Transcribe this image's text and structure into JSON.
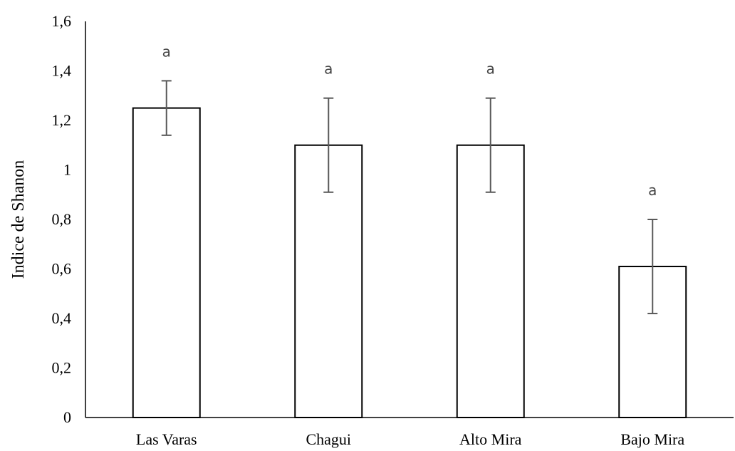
{
  "chart_data": {
    "type": "bar",
    "title": "",
    "xlabel": "",
    "ylabel": "Indice de Shanon",
    "categories": [
      "Las Varas",
      "Chagui",
      "Alto Mira",
      "Bajo Mira"
    ],
    "values": [
      1.25,
      1.1,
      1.1,
      0.61
    ],
    "error_low": [
      1.14,
      0.91,
      0.91,
      0.42
    ],
    "error_high": [
      1.36,
      1.29,
      1.29,
      0.8
    ],
    "significance_letters": [
      "a",
      "a",
      "a",
      "a"
    ],
    "ylim": [
      0,
      1.6
    ],
    "yticks": [
      0,
      0.2,
      0.4,
      0.6,
      0.8,
      1.0,
      1.2,
      1.4,
      1.6
    ],
    "ytick_labels": [
      "0",
      "0,2",
      "0,4",
      "0,6",
      "0,8",
      "1",
      "1,2",
      "1,4",
      "1,6"
    ],
    "grid": false,
    "legend": "none",
    "colors": {
      "bar_fill": "#ffffff",
      "bar_stroke": "#000000",
      "error_bar": "#595959",
      "axis": "#000000",
      "letter": "#444444"
    }
  }
}
